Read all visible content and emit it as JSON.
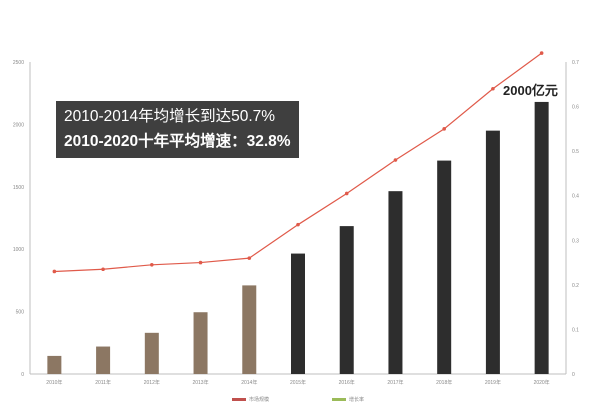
{
  "chart_data": {
    "type": "bar",
    "categories": [
      "2010年",
      "2011年",
      "2012年",
      "2013年",
      "2014年",
      "2015年",
      "2016年",
      "2017年",
      "2018年",
      "2019年",
      "2020年"
    ],
    "series": [
      {
        "name": "市场规模",
        "type": "bar",
        "axis": "left",
        "values": [
          145,
          220,
          330,
          495,
          710,
          965,
          1185,
          1465,
          1710,
          1950,
          2180
        ],
        "colors": [
          "#8c7763",
          "#8c7763",
          "#8c7763",
          "#8c7763",
          "#8c7763",
          "#2d2d2d",
          "#2d2d2d",
          "#2d2d2d",
          "#2d2d2d",
          "#2d2d2d",
          "#2d2d2d"
        ]
      },
      {
        "name": "增长率",
        "type": "line",
        "axis": "right",
        "color": "#e05a4a",
        "values": [
          0.23,
          0.235,
          0.245,
          0.25,
          0.26,
          0.335,
          0.405,
          0.48,
          0.55,
          0.64,
          0.72
        ]
      }
    ],
    "yticks_left": [
      "0",
      "500",
      "1000",
      "1500",
      "2000",
      "2500"
    ],
    "yticks_right": [
      "0",
      "0.1",
      "0.2",
      "0.3",
      "0.4",
      "0.5",
      "0.6",
      "0.7"
    ],
    "ylim_left": [
      0,
      2500
    ],
    "ylim_right": [
      0,
      0.7
    ],
    "legend": "bottom",
    "legend_items": [
      {
        "label": "市场规模",
        "color": "#c0504d"
      },
      {
        "label": "增长率",
        "color": "#9bbb59"
      }
    ]
  },
  "annotation": {
    "line1": "2010-2014年均增长到达50.7%",
    "line2": "2010-2020十年平均增速：32.8%"
  },
  "callout": "2000亿元"
}
